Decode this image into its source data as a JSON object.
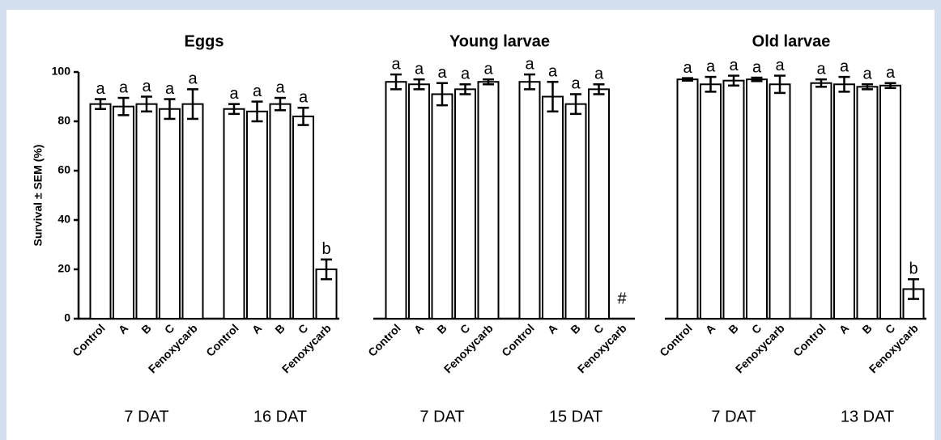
{
  "chart_data": [
    {
      "type": "bar",
      "title": "Eggs",
      "y_label": "Survival ± SEM (%)",
      "ylim": [
        0,
        100
      ],
      "yticks": [
        0,
        20,
        40,
        60,
        80,
        100
      ],
      "color": "#ffffff",
      "groups": [
        {
          "name": "7 DAT",
          "categories": [
            "Control",
            "A",
            "B",
            "C",
            "Fenoxycarb"
          ],
          "values": [
            87,
            86,
            87,
            85,
            87
          ],
          "errors": [
            2,
            3.5,
            3,
            4,
            6
          ],
          "letters": [
            "a",
            "a",
            "a",
            "a",
            "a"
          ]
        },
        {
          "name": "16 DAT",
          "categories": [
            "Control",
            "A",
            "B",
            "C",
            "Fenoxycarb"
          ],
          "values": [
            85,
            84,
            87,
            82,
            20
          ],
          "errors": [
            2,
            4,
            2.5,
            3.5,
            4
          ],
          "letters": [
            "a",
            "a",
            "a",
            "a",
            "b"
          ]
        }
      ]
    },
    {
      "type": "bar",
      "title": "Young larvae",
      "ylim": [
        0,
        100
      ],
      "color": "#ffffff",
      "groups": [
        {
          "name": "7 DAT",
          "categories": [
            "Control",
            "A",
            "B",
            "C",
            "Fenoxycarb"
          ],
          "values": [
            96,
            95,
            91,
            93,
            96
          ],
          "errors": [
            3,
            2,
            4.5,
            2,
            1
          ],
          "letters": [
            "a",
            "a",
            "a",
            "a",
            "a"
          ]
        },
        {
          "name": "15 DAT",
          "categories": [
            "Control",
            "A",
            "B",
            "C",
            "Fenoxycarb"
          ],
          "values": [
            96,
            90,
            87,
            93,
            null
          ],
          "errors": [
            3,
            6,
            4,
            2,
            null
          ],
          "letters": [
            "a",
            "a",
            "a",
            "a",
            "#"
          ]
        }
      ]
    },
    {
      "type": "bar",
      "title": "Old larvae",
      "ylim": [
        0,
        100
      ],
      "color": "#ffffff",
      "groups": [
        {
          "name": "7 DAT",
          "categories": [
            "Control",
            "A",
            "B",
            "C",
            "Fenoxycarb"
          ],
          "values": [
            97,
            95,
            96.5,
            97,
            95
          ],
          "errors": [
            0.5,
            3,
            2,
            0.7,
            3.5
          ],
          "letters": [
            "a",
            "a",
            "a",
            "a",
            "a"
          ]
        },
        {
          "name": "13 DAT",
          "categories": [
            "Control",
            "A",
            "B",
            "C",
            "Fenoxycarb"
          ],
          "values": [
            95.5,
            95,
            94,
            94.5,
            12
          ],
          "errors": [
            1.5,
            3,
            1,
            1,
            4
          ],
          "letters": [
            "a",
            "a",
            "a",
            "a",
            "b"
          ]
        }
      ]
    }
  ]
}
